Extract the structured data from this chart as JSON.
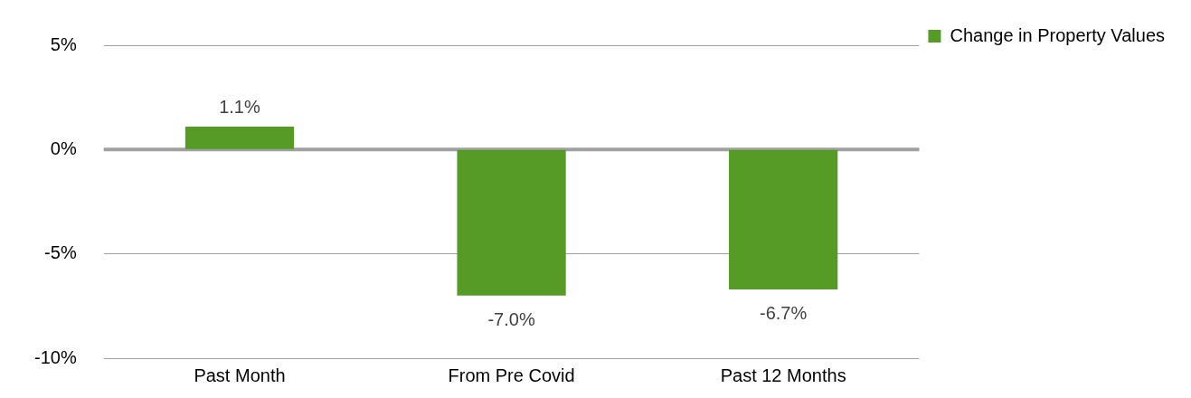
{
  "chart_data": {
    "type": "bar",
    "categories": [
      "Past Month",
      "From Pre Covid",
      "Past 12 Months"
    ],
    "series": [
      {
        "name": "Change in Property Values",
        "color": "#559b26",
        "values": [
          1.1,
          -7.0,
          -6.7
        ],
        "value_labels": [
          "1.1%",
          "-7.0%",
          "-6.7%"
        ]
      }
    ],
    "ylim": [
      -10,
      5
    ],
    "yticks": [
      {
        "value": 5,
        "label": "5%"
      },
      {
        "value": 0,
        "label": "0%"
      },
      {
        "value": -5,
        "label": "-5%"
      },
      {
        "value": -10,
        "label": "-10%"
      }
    ],
    "grid": "y",
    "legend": "right"
  }
}
